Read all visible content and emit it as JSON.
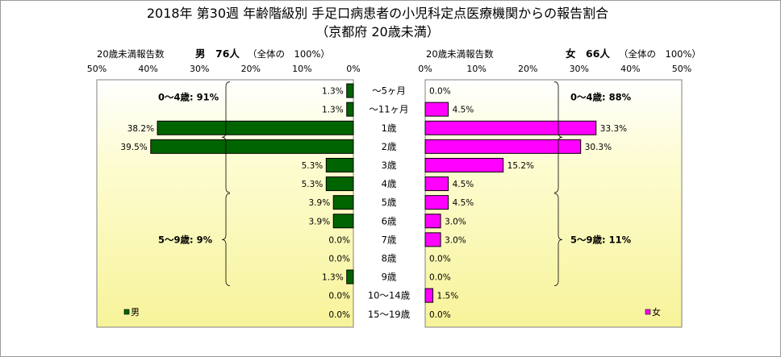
{
  "chart_data": {
    "type": "bar",
    "title": "2018年 第30週 年齢階級別 手足口病患者の小児科定点医療機関からの報告割合",
    "subtitle": "（京都府 20歳未満）",
    "categories": [
      "～5ヶ月",
      "～11ヶ月",
      "1歳",
      "2歳",
      "3歳",
      "4歳",
      "5歳",
      "6歳",
      "7歳",
      "8歳",
      "9歳",
      "10～14歳",
      "15～19歳"
    ],
    "series": [
      {
        "name": "男",
        "side": "left",
        "color": "#006400",
        "header_label": "20歳未満報告数",
        "header_count": "男　76人",
        "header_note": "（全体の　100%）",
        "values": [
          1.3,
          1.3,
          38.2,
          39.5,
          5.3,
          5.3,
          3.9,
          3.9,
          0.0,
          0.0,
          1.3,
          0.0,
          0.0
        ],
        "labels": [
          "1.3%",
          "1.3%",
          "38.2%",
          "39.5%",
          "5.3%",
          "5.3%",
          "3.9%",
          "3.9%",
          "0.0%",
          "0.0%",
          "1.3%",
          "0.0%",
          "0.0%"
        ],
        "groups": [
          {
            "label": "0～4歳: 91%",
            "from": 0,
            "to": 5
          },
          {
            "label": "5～9歳: 9%",
            "from": 6,
            "to": 10
          }
        ]
      },
      {
        "name": "女",
        "side": "right",
        "color": "#ff00ff",
        "header_label": "20歳未満報告数",
        "header_count": "女　66人",
        "header_note": "（全体の　100%）",
        "values": [
          0.0,
          4.5,
          33.3,
          30.3,
          15.2,
          4.5,
          4.5,
          3.0,
          3.0,
          0.0,
          0.0,
          1.5,
          0.0
        ],
        "labels": [
          "0.0%",
          "4.5%",
          "33.3%",
          "30.3%",
          "15.2%",
          "4.5%",
          "4.5%",
          "3.0%",
          "3.0%",
          "0.0%",
          "0.0%",
          "1.5%",
          "0.0%"
        ],
        "groups": [
          {
            "label": "0～4歳: 88%",
            "from": 0,
            "to": 5
          },
          {
            "label": "5～9歳: 11%",
            "from": 6,
            "to": 10
          }
        ]
      }
    ],
    "xlim": [
      0,
      50
    ],
    "xticks": [
      {
        "v": 50,
        "label": "50%"
      },
      {
        "v": 40,
        "label": "40%"
      },
      {
        "v": 30,
        "label": "30%"
      },
      {
        "v": 20,
        "label": "20%"
      },
      {
        "v": 10,
        "label": "10%"
      },
      {
        "v": 0,
        "label": "0%"
      }
    ],
    "legend": "bottom-left (男), bottom-right (女)",
    "background": "yellow-white gradient"
  }
}
